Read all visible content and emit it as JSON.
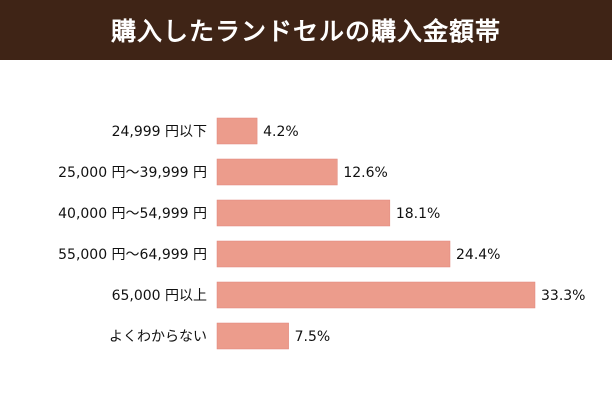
{
  "header": {
    "title": "購入したランドセルの購入金額帯"
  },
  "colors": {
    "header_bg": "#3f2416",
    "bar": "#ec9c8c",
    "bar_border": "#e0867a",
    "text": "#111111"
  },
  "chart_data": {
    "type": "bar",
    "orientation": "horizontal",
    "title": "購入したランドセルの購入金額帯",
    "categories": [
      "24,999 円以下",
      "25,000 円〜39,999 円",
      "40,000 円〜54,999 円",
      "55,000 円〜64,999 円",
      "65,000 円以上",
      "よくわからない"
    ],
    "values": [
      4.2,
      12.6,
      18.1,
      24.4,
      33.3,
      7.5
    ],
    "value_labels": [
      "4.2%",
      "12.6%",
      "18.1%",
      "24.4%",
      "33.3%",
      "7.5%"
    ],
    "unit": "%",
    "xlim": [
      0,
      33.3
    ],
    "grid": false,
    "legend": "none"
  }
}
